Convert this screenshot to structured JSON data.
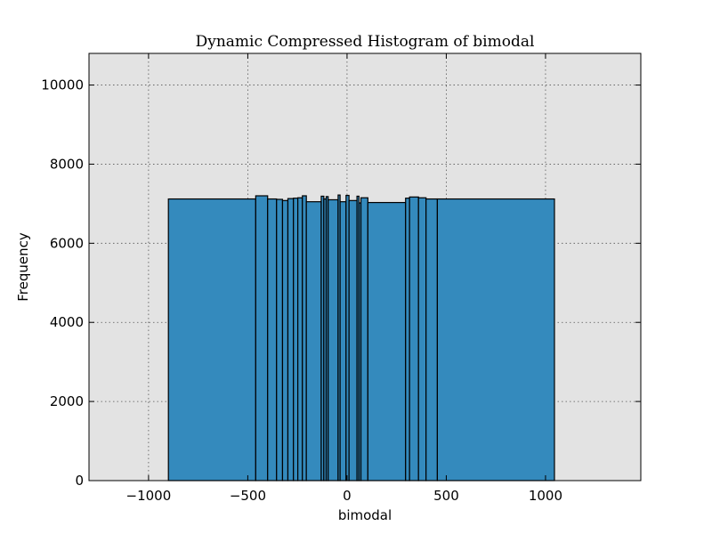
{
  "chart_data": {
    "type": "bar",
    "title": "Dynamic Compressed Histogram of bimodal",
    "xlabel": "bimodal",
    "ylabel": "Frequency",
    "xlim": [
      -1300,
      1480
    ],
    "ylim": [
      0,
      10800
    ],
    "x_ticks": [
      -1000,
      -500,
      0,
      500,
      1000
    ],
    "x_tick_labels": [
      "−1000",
      "−500",
      "0",
      "500",
      "1000"
    ],
    "y_ticks": [
      0,
      2000,
      4000,
      6000,
      8000,
      10000
    ],
    "y_tick_labels": [
      "0",
      "2000",
      "4000",
      "6000",
      "8000",
      "10000"
    ],
    "grid": true,
    "bar_color": "#348abd",
    "plot_background": "#e3e3e3",
    "bins": [
      {
        "x0": -900,
        "x1": -460,
        "y": 7120
      },
      {
        "x0": -460,
        "x1": -400,
        "y": 7200
      },
      {
        "x0": -400,
        "x1": -355,
        "y": 7120
      },
      {
        "x0": -355,
        "x1": -325,
        "y": 7110
      },
      {
        "x0": -325,
        "x1": -298,
        "y": 7080
      },
      {
        "x0": -298,
        "x1": -270,
        "y": 7130
      },
      {
        "x0": -270,
        "x1": -248,
        "y": 7140
      },
      {
        "x0": -248,
        "x1": -225,
        "y": 7150
      },
      {
        "x0": -225,
        "x1": -205,
        "y": 7200
      },
      {
        "x0": -205,
        "x1": -130,
        "y": 7050
      },
      {
        "x0": -130,
        "x1": -117,
        "y": 7190
      },
      {
        "x0": -117,
        "x1": -105,
        "y": 7120
      },
      {
        "x0": -105,
        "x1": -95,
        "y": 7180
      },
      {
        "x0": -95,
        "x1": -45,
        "y": 7100
      },
      {
        "x0": -45,
        "x1": -35,
        "y": 7220
      },
      {
        "x0": -35,
        "x1": -5,
        "y": 7050
      },
      {
        "x0": -5,
        "x1": 10,
        "y": 7210
      },
      {
        "x0": 10,
        "x1": 50,
        "y": 7080
      },
      {
        "x0": 50,
        "x1": 60,
        "y": 7190
      },
      {
        "x0": 60,
        "x1": 70,
        "y": 7020
      },
      {
        "x0": 70,
        "x1": 105,
        "y": 7150
      },
      {
        "x0": 105,
        "x1": 295,
        "y": 7030
      },
      {
        "x0": 295,
        "x1": 315,
        "y": 7140
      },
      {
        "x0": 315,
        "x1": 360,
        "y": 7170
      },
      {
        "x0": 360,
        "x1": 398,
        "y": 7150
      },
      {
        "x0": 398,
        "x1": 455,
        "y": 7120
      },
      {
        "x0": 455,
        "x1": 1045,
        "y": 7120
      }
    ]
  }
}
